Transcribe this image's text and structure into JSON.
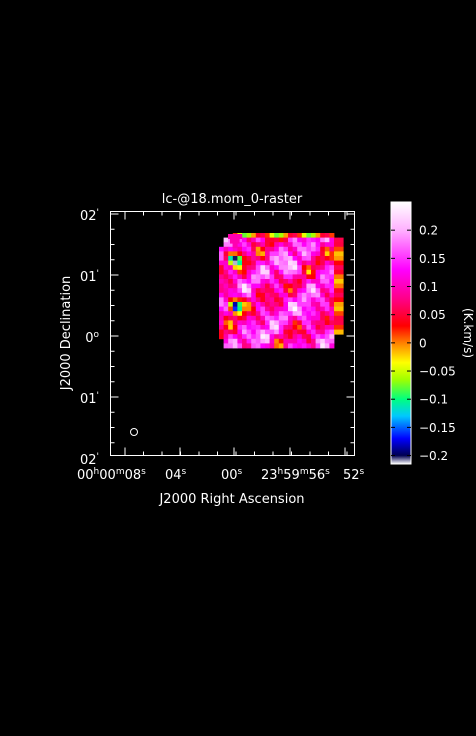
{
  "chart_data": {
    "type": "heatmap",
    "title": "lc-@18.mom_0-raster",
    "xlabel": "J2000 Right Ascension",
    "ylabel": "J2000 Declination",
    "x_ticks": [
      {
        "main": "00",
        "h": "h",
        "m_val": "00",
        "m": "m",
        "s_val": "08",
        "s": "s"
      },
      {
        "main": "04",
        "s": "s"
      },
      {
        "main": "00",
        "s": "s"
      },
      {
        "main": "23",
        "h": "h",
        "m_val": "59",
        "m": "m",
        "s_val": "56",
        "s": "s"
      },
      {
        "main": "52",
        "s": "s"
      }
    ],
    "y_ticks": [
      {
        "main": "02",
        "unit": "'"
      },
      {
        "main": "01",
        "unit": "'"
      },
      {
        "main": "0",
        "unit": "o"
      },
      {
        "main": "01",
        "unit": "'"
      },
      {
        "main": "02",
        "unit": "'"
      }
    ],
    "colorbar": {
      "label": "(K.km/s)",
      "range": [
        -0.215,
        0.25
      ],
      "ticks": [
        {
          "value": 0.2,
          "label": "0.2"
        },
        {
          "value": 0.15,
          "label": "0.15"
        },
        {
          "value": 0.1,
          "label": "0.1"
        },
        {
          "value": 0.05,
          "label": "0.05"
        },
        {
          "value": 0,
          "label": "0"
        },
        {
          "value": -0.05,
          "label": "−0.05"
        },
        {
          "value": -0.1,
          "label": "−0.1"
        },
        {
          "value": -0.15,
          "label": "−0.15"
        },
        {
          "value": -0.2,
          "label": "−0.2"
        }
      ],
      "colormap": [
        {
          "v": -0.215,
          "c": "#ffffff"
        },
        {
          "v": -0.2,
          "c": "#000050"
        },
        {
          "v": -0.17,
          "c": "#0000ff"
        },
        {
          "v": -0.13,
          "c": "#00c8ff"
        },
        {
          "v": -0.1,
          "c": "#00ff80"
        },
        {
          "v": -0.065,
          "c": "#a0ff00"
        },
        {
          "v": -0.035,
          "c": "#ffff00"
        },
        {
          "v": 0.0,
          "c": "#ff8000"
        },
        {
          "v": 0.03,
          "c": "#ff0000"
        },
        {
          "v": 0.075,
          "c": "#ff0080"
        },
        {
          "v": 0.13,
          "c": "#ff00ff"
        },
        {
          "v": 0.2,
          "c": "#ffb0ff"
        },
        {
          "v": 0.25,
          "c": "#ffffff"
        }
      ]
    }
  }
}
